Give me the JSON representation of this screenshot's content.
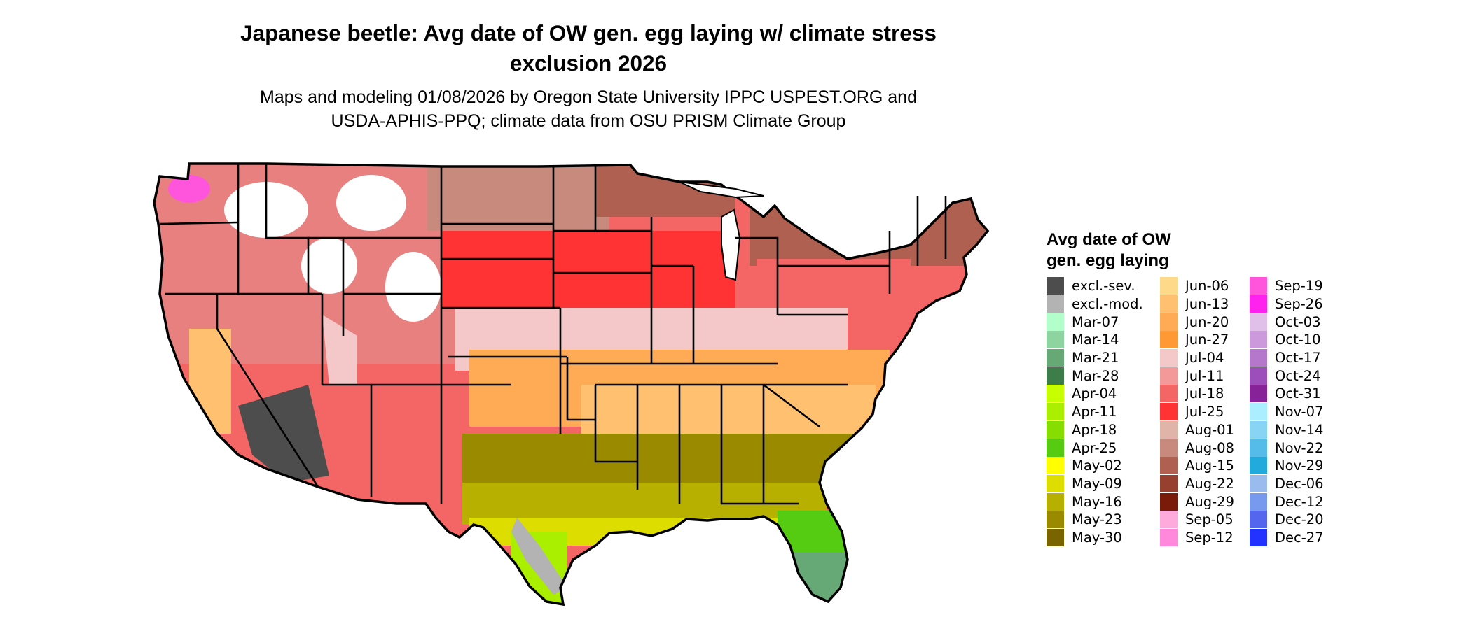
{
  "title": {
    "line1": "Japanese beetle: Avg date of OW gen. egg laying w/ climate stress",
    "line2": "exclusion 2026"
  },
  "subtitle": {
    "line1": "Maps and modeling 01/08/2026 by Oregon State University IPPC USPEST.ORG and",
    "line2": "USDA-APHIS-PPQ; climate data from OSU PRISM Climate Group"
  },
  "legend": {
    "title_line1": "Avg date of OW",
    "title_line2": "gen. egg laying",
    "columns": [
      [
        {
          "label": "excl.-sev.",
          "color": "#4d4d4d"
        },
        {
          "label": "excl.-mod.",
          "color": "#b3b3b3"
        },
        {
          "label": "Mar-07",
          "color": "#b3ffcc"
        },
        {
          "label": "Mar-14",
          "color": "#8dd4a0"
        },
        {
          "label": "Mar-21",
          "color": "#66a876"
        },
        {
          "label": "Mar-28",
          "color": "#3d7d4a"
        },
        {
          "label": "Apr-04",
          "color": "#c8ff00"
        },
        {
          "label": "Apr-11",
          "color": "#aaee00"
        },
        {
          "label": "Apr-18",
          "color": "#88dd00"
        },
        {
          "label": "Apr-25",
          "color": "#55cc11"
        },
        {
          "label": "May-02",
          "color": "#ffff00"
        },
        {
          "label": "May-09",
          "color": "#dddd00"
        },
        {
          "label": "May-16",
          "color": "#b8b000"
        },
        {
          "label": "May-23",
          "color": "#9a8a00"
        },
        {
          "label": "May-30",
          "color": "#7a6400"
        }
      ],
      [
        {
          "label": "Jun-06",
          "color": "#ffd98a"
        },
        {
          "label": "Jun-13",
          "color": "#ffc070"
        },
        {
          "label": "Jun-20",
          "color": "#ffaa55"
        },
        {
          "label": "Jun-27",
          "color": "#ff9933"
        },
        {
          "label": "Jul-04",
          "color": "#f4c8c8"
        },
        {
          "label": "Jul-11",
          "color": "#f49999"
        },
        {
          "label": "Jul-18",
          "color": "#f46666"
        },
        {
          "label": "Jul-25",
          "color": "#ff3333"
        },
        {
          "label": "Aug-01",
          "color": "#e0b4a8"
        },
        {
          "label": "Aug-08",
          "color": "#c88a7c"
        },
        {
          "label": "Aug-15",
          "color": "#b06050"
        },
        {
          "label": "Aug-22",
          "color": "#984030"
        },
        {
          "label": "Aug-29",
          "color": "#7a1a08"
        },
        {
          "label": "Sep-05",
          "color": "#ffaadd"
        },
        {
          "label": "Sep-12",
          "color": "#ff88dd"
        }
      ],
      [
        {
          "label": "Sep-19",
          "color": "#ff55dd"
        },
        {
          "label": "Sep-26",
          "color": "#ff22ee"
        },
        {
          "label": "Oct-03",
          "color": "#e0c0e8"
        },
        {
          "label": "Oct-10",
          "color": "#cc99dd"
        },
        {
          "label": "Oct-17",
          "color": "#b477cc"
        },
        {
          "label": "Oct-24",
          "color": "#9e4ebb"
        },
        {
          "label": "Oct-31",
          "color": "#882299"
        },
        {
          "label": "Nov-07",
          "color": "#aaeeff"
        },
        {
          "label": "Nov-14",
          "color": "#88d4f4"
        },
        {
          "label": "Nov-22",
          "color": "#55bbe8"
        },
        {
          "label": "Nov-29",
          "color": "#22aadd"
        },
        {
          "label": "Dec-06",
          "color": "#99bbee"
        },
        {
          "label": "Dec-12",
          "color": "#7799ee"
        },
        {
          "label": "Dec-20",
          "color": "#5566ee"
        },
        {
          "label": "Dec-27",
          "color": "#2233ff"
        }
      ]
    ]
  }
}
